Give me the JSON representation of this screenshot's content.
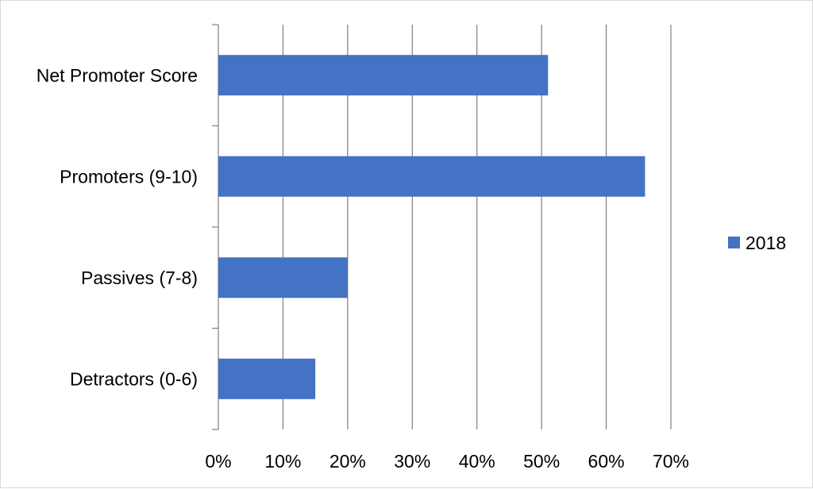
{
  "chart_data": {
    "type": "bar",
    "orientation": "horizontal",
    "categories": [
      "Net Promoter Score",
      "Promoters (9-10)",
      "Passives (7-8)",
      "Detractors (0-6)"
    ],
    "series": [
      {
        "name": "2018",
        "values": [
          51,
          66,
          20,
          15
        ],
        "color": "#4472C4"
      }
    ],
    "xlim": [
      0,
      70
    ],
    "xticks": [
      "0%",
      "10%",
      "20%",
      "30%",
      "40%",
      "50%",
      "60%",
      "70%"
    ],
    "tick_step": 10,
    "grid": "vertical",
    "gridline_color": "#7f7f7f",
    "legend": "right"
  }
}
